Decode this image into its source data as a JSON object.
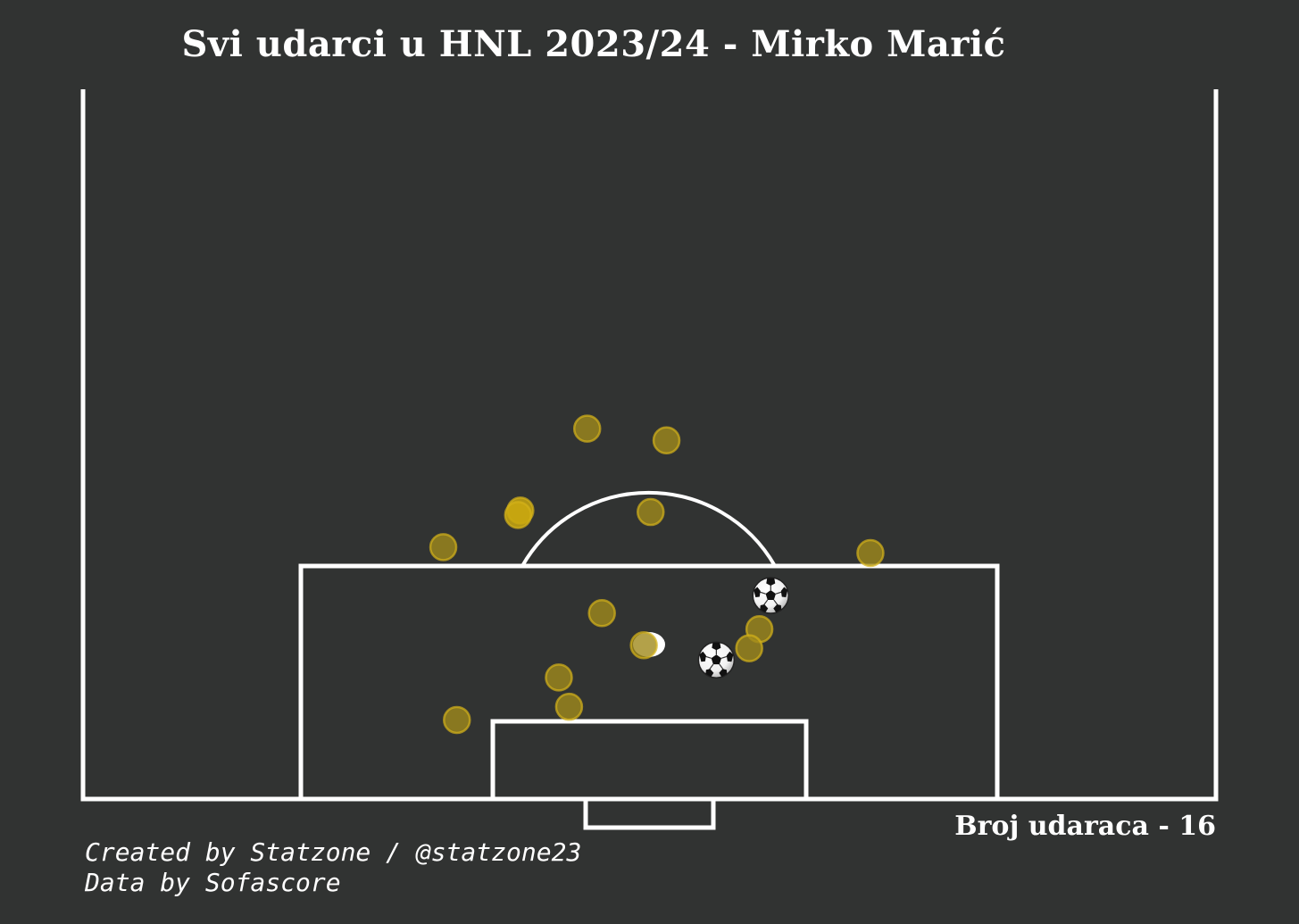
{
  "title": "Svi udarci u HNL 2023/24 - Mirko Marić",
  "shot_count_label": "Broj udaraca - 16",
  "credits": {
    "created_by": "Created by Statzone / @statzone23",
    "data_by": "Data by Sofascore"
  },
  "colors": {
    "background": "#313332",
    "lines": "#ffffff",
    "shot_fill": "#a08a1c",
    "shot_edge": "#d4b21a",
    "shot_highlight_fill": "#c9a80f"
  },
  "icons": {
    "goal_marker": "soccer-ball-icon",
    "penalty_spot": "penalty-spot"
  },
  "chart_data": {
    "type": "scatter",
    "x_units": "pitch width (0-100, left to right)",
    "y_units": "pitch length from goal line (0-100)",
    "xlim": [
      0,
      100
    ],
    "ylim": [
      0,
      50
    ],
    "shots": [
      {
        "x": 44.5,
        "y": 25.3,
        "goal": false,
        "highlight": false
      },
      {
        "x": 51.5,
        "y": 24.5,
        "goal": false,
        "highlight": false
      },
      {
        "x": 38.6,
        "y": 19.7,
        "goal": false,
        "highlight": true
      },
      {
        "x": 38.4,
        "y": 19.4,
        "goal": false,
        "highlight": true
      },
      {
        "x": 50.1,
        "y": 19.6,
        "goal": false,
        "highlight": false
      },
      {
        "x": 31.8,
        "y": 17.2,
        "goal": false,
        "highlight": false
      },
      {
        "x": 69.5,
        "y": 16.8,
        "goal": false,
        "highlight": false
      },
      {
        "x": 45.8,
        "y": 12.7,
        "goal": false,
        "highlight": false
      },
      {
        "x": 49.5,
        "y": 10.5,
        "goal": false,
        "highlight": false
      },
      {
        "x": 59.7,
        "y": 11.6,
        "goal": false,
        "highlight": false
      },
      {
        "x": 58.8,
        "y": 10.3,
        "goal": false,
        "highlight": false
      },
      {
        "x": 42.0,
        "y": 8.3,
        "goal": false,
        "highlight": false
      },
      {
        "x": 42.9,
        "y": 6.3,
        "goal": false,
        "highlight": false
      },
      {
        "x": 33.0,
        "y": 5.4,
        "goal": false,
        "highlight": false
      },
      {
        "x": 60.7,
        "y": 13.9,
        "goal": true,
        "highlight": false
      },
      {
        "x": 55.9,
        "y": 9.5,
        "goal": true,
        "highlight": false
      }
    ]
  }
}
